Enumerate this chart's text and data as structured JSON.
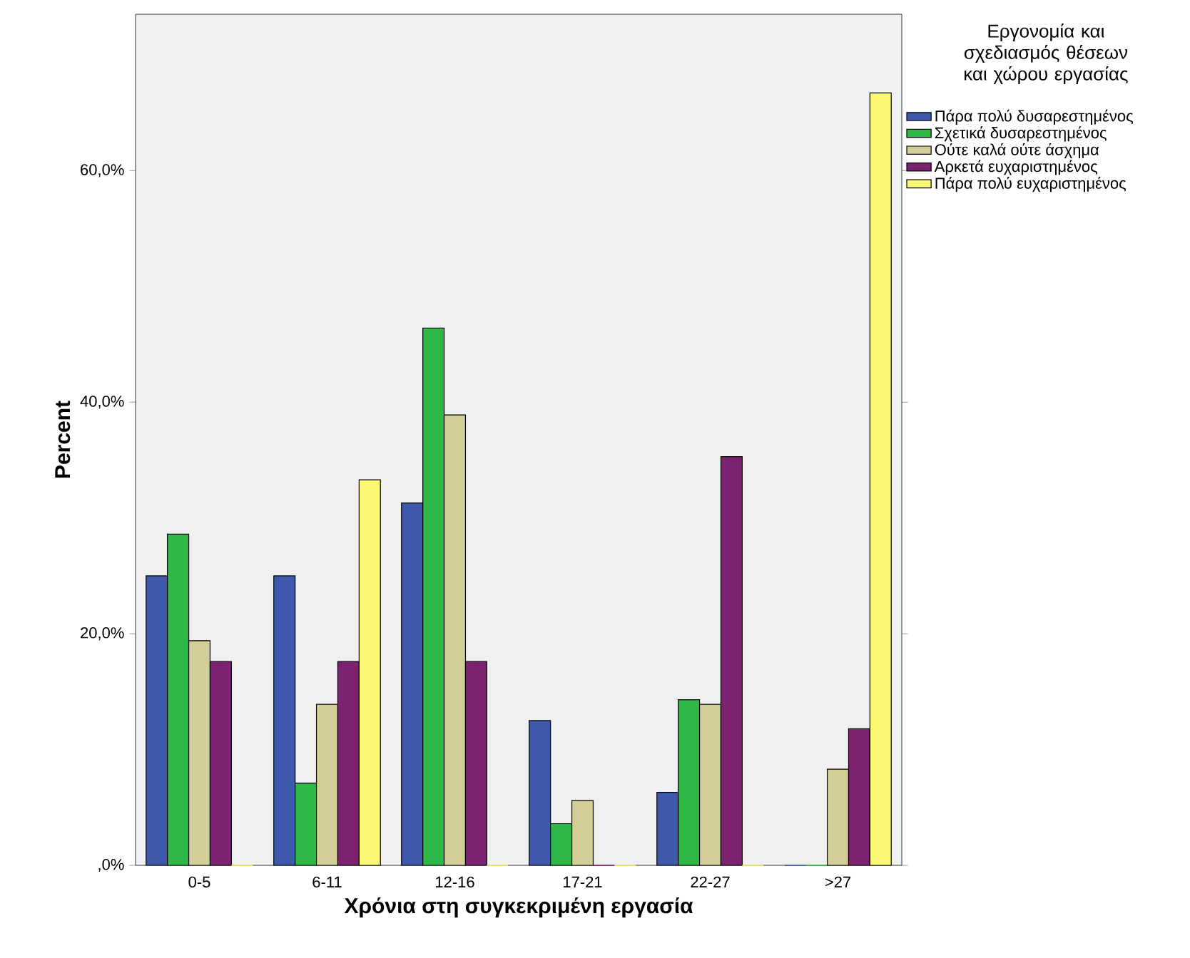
{
  "chart_data": {
    "type": "bar",
    "xlabel": "Χρόνια στη συγκεκριμένη εργασία",
    "ylabel": "Percent",
    "legend_title": "Εργονομία και σχεδιασμός θέσεων και χώρου εργασίας",
    "categories": [
      "0-5",
      "6-11",
      "12-16",
      "17-21",
      "22-27",
      ">27"
    ],
    "series": [
      {
        "name": "Πάρα πολύ δυσαρεστημένος",
        "color": "#3e58ac",
        "values": [
          25.0,
          25.0,
          31.3,
          12.5,
          6.3,
          0
        ]
      },
      {
        "name": "Σχετικά δυσαρεστημένος",
        "color": "#2eb848",
        "values": [
          28.6,
          7.1,
          46.4,
          3.6,
          14.3,
          0
        ]
      },
      {
        "name": "Ούτε καλά ούτε άσχημα",
        "color": "#d3ce97",
        "values": [
          19.4,
          13.9,
          38.9,
          5.6,
          13.9,
          8.3
        ]
      },
      {
        "name": "Αρκετά ευχαριστημένος",
        "color": "#7c2270",
        "values": [
          17.6,
          17.6,
          17.6,
          0,
          35.3,
          11.8
        ]
      },
      {
        "name": "Πάρα πολύ ευχαριστημένος",
        "color": "#fbf873",
        "values": [
          0,
          33.3,
          0,
          0,
          0,
          66.7
        ]
      }
    ],
    "ylim": [
      0,
      73.5
    ],
    "yticks": [
      {
        "value": 0,
        "label": ",0%"
      },
      {
        "value": 20,
        "label": "20,0%"
      },
      {
        "value": 40,
        "label": "40,0%"
      },
      {
        "value": 60,
        "label": "60,0%"
      }
    ],
    "grid": false,
    "legend": "right"
  }
}
